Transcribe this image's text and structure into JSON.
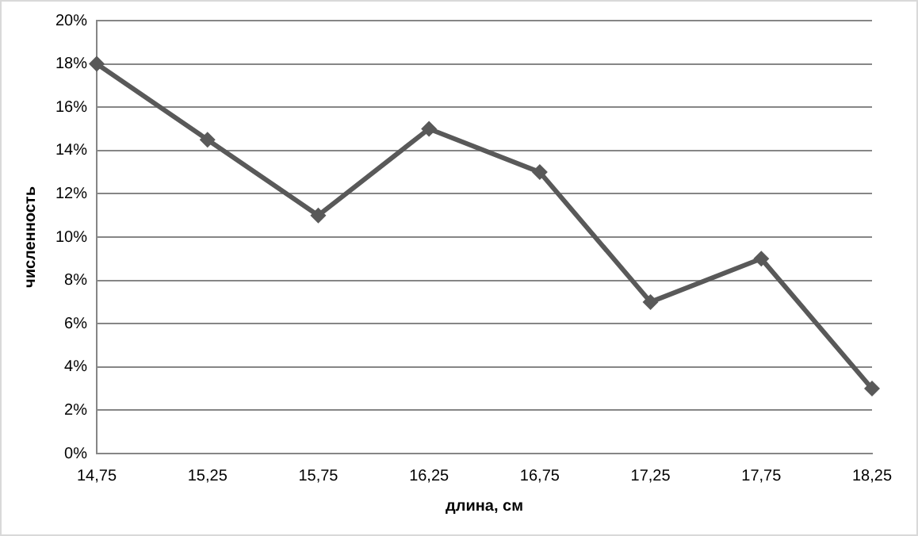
{
  "chart_data": {
    "type": "line",
    "xlabel": "длина, см",
    "ylabel": "численность",
    "categories": [
      "14,75",
      "15,25",
      "15,75",
      "16,25",
      "16,75",
      "17,25",
      "17,75",
      "18,25"
    ],
    "series": [
      {
        "color": "#595959",
        "values": [
          18,
          14.5,
          11,
          15,
          13,
          7,
          9,
          3
        ]
      }
    ],
    "ylim": [
      0,
      20
    ],
    "yticks": [
      {
        "value": 0,
        "label": "0%"
      },
      {
        "value": 2,
        "label": "2%"
      },
      {
        "value": 4,
        "label": "4%"
      },
      {
        "value": 6,
        "label": "6%"
      },
      {
        "value": 8,
        "label": "8%"
      },
      {
        "value": 10,
        "label": "10%"
      },
      {
        "value": 12,
        "label": "12%"
      },
      {
        "value": 14,
        "label": "14%"
      },
      {
        "value": 16,
        "label": "16%"
      },
      {
        "value": 18,
        "label": "18%"
      },
      {
        "value": 20,
        "label": "20%"
      }
    ],
    "grid": "y",
    "legend": false,
    "marker": "diamond",
    "line_style": "solid"
  }
}
